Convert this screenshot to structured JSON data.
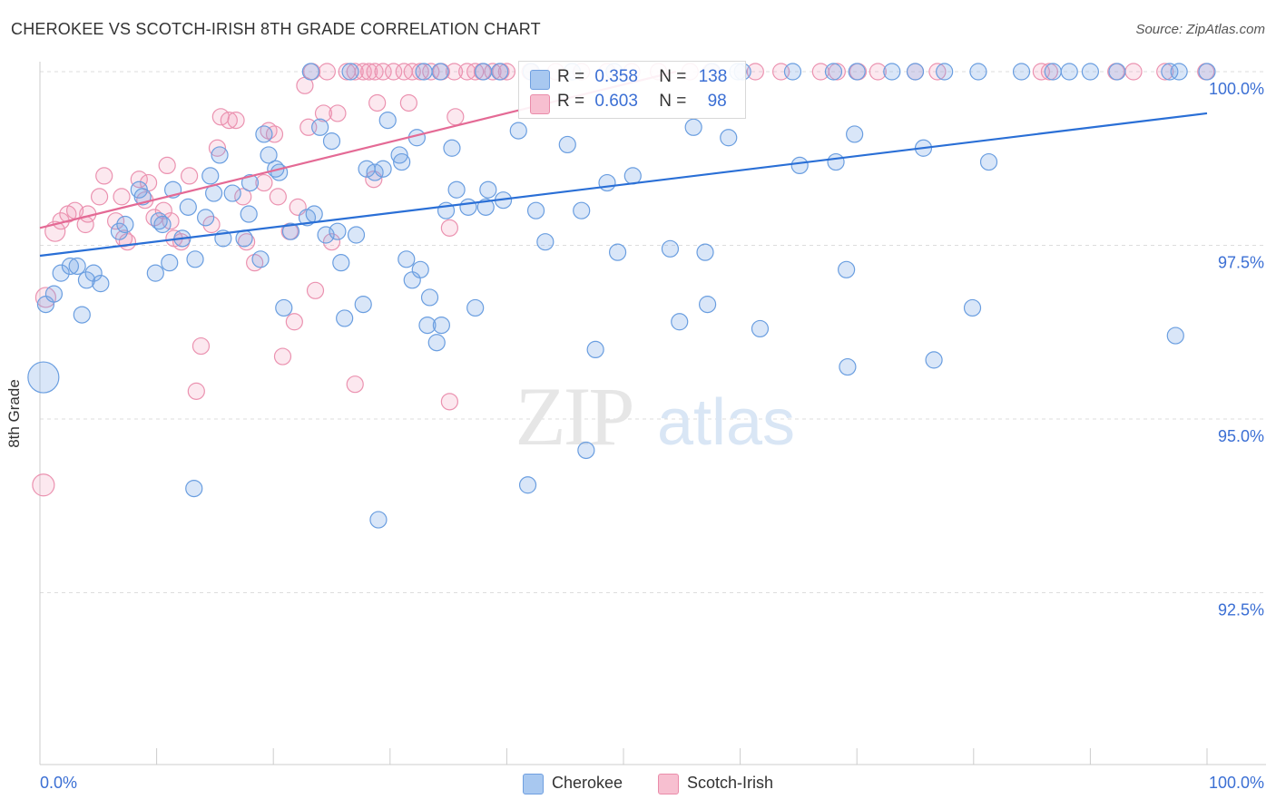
{
  "header": {
    "title": "CHEROKEE VS SCOTCH-IRISH 8TH GRADE CORRELATION CHART",
    "source": "Source: ZipAtlas.com"
  },
  "watermark": {
    "zip": "ZIP",
    "atlas": "atlas"
  },
  "stats": [
    {
      "r_label": "R =",
      "r_value": "0.358",
      "n_label": "N =",
      "n_value": "138",
      "color": "#a8c8f0",
      "border": "#6f9fe0"
    },
    {
      "r_label": "R =",
      "r_value": "0.603",
      "n_label": "N =",
      "n_value": "98",
      "color": "#f7bfd0",
      "border": "#ea8caa"
    }
  ],
  "legend": [
    {
      "label": "Cherokee",
      "color": "#a8c8f0",
      "border": "#6f9fe0"
    },
    {
      "label": "Scotch-Irish",
      "color": "#f7bfd0",
      "border": "#ea8caa"
    }
  ],
  "colors": {
    "blue_fill": "rgba(120,165,230,0.28)",
    "blue_stroke": "#6a9ee0",
    "blue_line": "#2a6fd6",
    "pink_fill": "rgba(240,150,180,0.22)",
    "pink_stroke": "#eb92b0",
    "pink_line": "#e46a95",
    "tick_label": "#3b6fd4",
    "grid": "#dddddd"
  },
  "chart_data": {
    "type": "scatter",
    "title": "CHEROKEE VS SCOTCH-IRISH 8TH GRADE CORRELATION CHART",
    "xlabel": "",
    "ylabel": "8th Grade",
    "xlim": [
      0,
      100
    ],
    "ylim": [
      90.3,
      100.45
    ],
    "x_tick_labels": [
      "0.0%",
      "100.0%"
    ],
    "y_ticks": [
      92.5,
      95.0,
      97.5,
      100.0
    ],
    "y_tick_labels": [
      "92.5%",
      "95.0%",
      "97.5%",
      "100.0%"
    ],
    "grid": "horizontal dashed",
    "legend_position": "bottom-center",
    "series": [
      {
        "name": "Cherokee",
        "r": 0.358,
        "n": 138,
        "trend": {
          "x": [
            0,
            100
          ],
          "y": [
            97.35,
            99.4
          ]
        },
        "points": [
          [
            0.5,
            96.65,
            9
          ],
          [
            1.2,
            96.8,
            9
          ],
          [
            1.8,
            97.1,
            9
          ],
          [
            2.6,
            97.2,
            9
          ],
          [
            3.6,
            96.5,
            9
          ],
          [
            3.2,
            97.2,
            9
          ],
          [
            4.0,
            97.0,
            9
          ],
          [
            4.6,
            97.1,
            9
          ],
          [
            5.2,
            96.95,
            9
          ],
          [
            6.8,
            97.7,
            9
          ],
          [
            7.3,
            97.8,
            9
          ],
          [
            8.5,
            98.3,
            9
          ],
          [
            8.8,
            98.2,
            9
          ],
          [
            9.9,
            97.1,
            9
          ],
          [
            10.2,
            97.85,
            9
          ],
          [
            10.5,
            97.8,
            9
          ],
          [
            11.1,
            97.25,
            9
          ],
          [
            11.4,
            98.3,
            9
          ],
          [
            12.2,
            97.6,
            9
          ],
          [
            12.7,
            98.05,
            9
          ],
          [
            13.2,
            94.0,
            9
          ],
          [
            13.3,
            97.3,
            9
          ],
          [
            14.2,
            97.9,
            9
          ],
          [
            14.6,
            98.5,
            9
          ],
          [
            14.9,
            98.25,
            9
          ],
          [
            15.4,
            98.8,
            9
          ],
          [
            15.7,
            97.6,
            9
          ],
          [
            16.5,
            98.25,
            9
          ],
          [
            17.5,
            97.6,
            9
          ],
          [
            17.9,
            97.95,
            9
          ],
          [
            18.0,
            98.4,
            9
          ],
          [
            18.9,
            97.3,
            9
          ],
          [
            19.2,
            99.1,
            9
          ],
          [
            19.6,
            98.8,
            9
          ],
          [
            20.2,
            98.6,
            9
          ],
          [
            20.5,
            98.55,
            9
          ],
          [
            20.9,
            96.6,
            9
          ],
          [
            21.5,
            97.7,
            9
          ],
          [
            22.9,
            97.9,
            9
          ],
          [
            23.5,
            97.95,
            9
          ],
          [
            24.0,
            99.2,
            9
          ],
          [
            24.5,
            97.65,
            9
          ],
          [
            25.0,
            99.0,
            9
          ],
          [
            25.5,
            97.7,
            9
          ],
          [
            25.8,
            97.25,
            9
          ],
          [
            26.1,
            96.45,
            9
          ],
          [
            27.1,
            97.65,
            9
          ],
          [
            27.7,
            96.65,
            9
          ],
          [
            28.0,
            98.6,
            9
          ],
          [
            28.7,
            98.55,
            9
          ],
          [
            29.0,
            93.55,
            9
          ],
          [
            29.4,
            98.6,
            9
          ],
          [
            29.8,
            99.3,
            9
          ],
          [
            30.8,
            98.8,
            9
          ],
          [
            31.0,
            98.7,
            9
          ],
          [
            31.4,
            97.3,
            9
          ],
          [
            31.9,
            97.0,
            9
          ],
          [
            32.3,
            99.05,
            9
          ],
          [
            32.6,
            97.15,
            9
          ],
          [
            33.2,
            96.35,
            9
          ],
          [
            33.4,
            96.75,
            9
          ],
          [
            34.0,
            96.1,
            9
          ],
          [
            34.4,
            96.35,
            9
          ],
          [
            34.8,
            98.0,
            9
          ],
          [
            35.3,
            98.9,
            9
          ],
          [
            35.7,
            98.3,
            9
          ],
          [
            36.7,
            98.05,
            9
          ],
          [
            37.3,
            96.6,
            9
          ],
          [
            38.2,
            98.05,
            9
          ],
          [
            38.4,
            98.3,
            9
          ],
          [
            39.7,
            98.15,
            9
          ],
          [
            41.0,
            99.15,
            9
          ],
          [
            41.8,
            94.05,
            9
          ],
          [
            42.5,
            98.0,
            9
          ],
          [
            43.3,
            97.55,
            9
          ],
          [
            45.2,
            98.95,
            9
          ],
          [
            46.4,
            98.0,
            9
          ],
          [
            46.8,
            94.55,
            9
          ],
          [
            47.6,
            96.0,
            9
          ],
          [
            48.6,
            98.4,
            9
          ],
          [
            49.5,
            97.4,
            9
          ],
          [
            50.8,
            98.5,
            9
          ],
          [
            54.0,
            97.45,
            9
          ],
          [
            54.8,
            96.4,
            9
          ],
          [
            56.0,
            99.2,
            9
          ],
          [
            57.0,
            97.4,
            9
          ],
          [
            57.2,
            96.65,
            9
          ],
          [
            59.0,
            99.05,
            9
          ],
          [
            61.7,
            96.3,
            9
          ],
          [
            65.1,
            98.65,
            9
          ],
          [
            68.2,
            98.7,
            9
          ],
          [
            69.1,
            97.15,
            9
          ],
          [
            69.2,
            95.75,
            9
          ],
          [
            69.8,
            99.1,
            9
          ],
          [
            75.7,
            98.9,
            9
          ],
          [
            76.6,
            95.85,
            9
          ],
          [
            79.9,
            96.6,
            9
          ],
          [
            81.3,
            98.7,
            9
          ],
          [
            97.3,
            96.2,
            9
          ],
          [
            92.3,
            100.0,
            9
          ],
          [
            96.8,
            100.0,
            9
          ],
          [
            86.8,
            100.0,
            9
          ],
          [
            88.2,
            100.0,
            9
          ],
          [
            77.5,
            100.0,
            9
          ],
          [
            75.0,
            100.0,
            9
          ],
          [
            73.0,
            100.0,
            9
          ],
          [
            68.0,
            100.0,
            9
          ],
          [
            64.5,
            100.0,
            9
          ],
          [
            60.2,
            100.0,
            9
          ],
          [
            59.8,
            100.0,
            9
          ],
          [
            57.6,
            100.0,
            9
          ],
          [
            49.2,
            100.0,
            9
          ],
          [
            45.6,
            100.0,
            9
          ],
          [
            42.1,
            100.0,
            9
          ],
          [
            39.4,
            100.0,
            9
          ],
          [
            38.0,
            100.0,
            9
          ],
          [
            34.3,
            100.0,
            9
          ],
          [
            32.9,
            100.0,
            9
          ],
          [
            26.6,
            100.0,
            9
          ],
          [
            23.2,
            100.0,
            9
          ],
          [
            100.0,
            100.0,
            9
          ],
          [
            97.6,
            100.0,
            9
          ],
          [
            90.0,
            100.0,
            9
          ],
          [
            84.1,
            100.0,
            9
          ],
          [
            80.4,
            100.0,
            9
          ],
          [
            70.0,
            100.0,
            9
          ],
          [
            0.3,
            95.6,
            17
          ]
        ]
      },
      {
        "name": "Scotch-Irish",
        "r": 0.603,
        "n": 98,
        "trend": {
          "x": [
            0,
            54.5
          ],
          "y": [
            97.75,
            100.0
          ]
        },
        "points": [
          [
            0.5,
            96.75,
            11
          ],
          [
            1.3,
            97.7,
            11
          ],
          [
            1.8,
            97.85,
            9
          ],
          [
            2.4,
            97.95,
            9
          ],
          [
            3.0,
            98.0,
            9
          ],
          [
            3.9,
            97.8,
            9
          ],
          [
            4.1,
            97.95,
            9
          ],
          [
            5.1,
            98.2,
            9
          ],
          [
            5.5,
            98.5,
            9
          ],
          [
            6.5,
            97.85,
            9
          ],
          [
            7.0,
            98.2,
            9
          ],
          [
            7.2,
            97.6,
            9
          ],
          [
            7.5,
            97.55,
            9
          ],
          [
            8.5,
            98.45,
            9
          ],
          [
            9.0,
            98.15,
            9
          ],
          [
            9.3,
            98.4,
            9
          ],
          [
            9.8,
            97.9,
            9
          ],
          [
            10.6,
            98.0,
            9
          ],
          [
            10.9,
            98.65,
            9
          ],
          [
            11.2,
            97.85,
            9
          ],
          [
            11.5,
            97.6,
            9
          ],
          [
            12.1,
            97.55,
            9
          ],
          [
            12.8,
            98.5,
            9
          ],
          [
            13.4,
            95.4,
            9
          ],
          [
            13.8,
            96.05,
            9
          ],
          [
            14.7,
            97.8,
            9
          ],
          [
            15.2,
            98.9,
            9
          ],
          [
            15.5,
            99.35,
            9
          ],
          [
            16.2,
            99.3,
            9
          ],
          [
            16.8,
            99.3,
            9
          ],
          [
            17.4,
            98.2,
            9
          ],
          [
            17.7,
            97.55,
            9
          ],
          [
            18.4,
            97.25,
            9
          ],
          [
            19.2,
            98.4,
            9
          ],
          [
            19.6,
            99.15,
            9
          ],
          [
            20.1,
            99.1,
            9
          ],
          [
            20.4,
            98.2,
            9
          ],
          [
            20.8,
            95.9,
            9
          ],
          [
            21.4,
            97.7,
            9
          ],
          [
            21.8,
            96.4,
            9
          ],
          [
            22.1,
            98.05,
            9
          ],
          [
            23.0,
            99.2,
            9
          ],
          [
            23.6,
            96.85,
            9
          ],
          [
            24.3,
            99.4,
            9
          ],
          [
            25.0,
            97.55,
            9
          ],
          [
            25.5,
            99.4,
            9
          ],
          [
            27.0,
            95.5,
            9
          ],
          [
            28.6,
            98.45,
            9
          ],
          [
            28.9,
            99.55,
            9
          ],
          [
            31.6,
            99.55,
            9
          ],
          [
            35.1,
            95.25,
            9
          ],
          [
            35.6,
            99.35,
            9
          ],
          [
            35.1,
            97.75,
            9
          ],
          [
            22.7,
            99.8,
            9
          ],
          [
            0.3,
            94.05,
            12
          ],
          [
            23.3,
            100.0,
            9
          ],
          [
            24.6,
            100.0,
            9
          ],
          [
            26.3,
            100.0,
            9
          ],
          [
            27.0,
            100.0,
            9
          ],
          [
            27.7,
            100.0,
            9
          ],
          [
            28.2,
            100.0,
            9
          ],
          [
            28.7,
            100.0,
            9
          ],
          [
            29.4,
            100.0,
            9
          ],
          [
            30.3,
            100.0,
            9
          ],
          [
            31.2,
            100.0,
            9
          ],
          [
            31.9,
            100.0,
            9
          ],
          [
            32.6,
            100.0,
            9
          ],
          [
            33.5,
            100.0,
            9
          ],
          [
            34.4,
            100.0,
            9
          ],
          [
            35.5,
            100.0,
            9
          ],
          [
            36.6,
            100.0,
            9
          ],
          [
            37.3,
            100.0,
            9
          ],
          [
            37.9,
            100.0,
            9
          ],
          [
            38.8,
            100.0,
            9
          ],
          [
            39.5,
            100.0,
            9
          ],
          [
            40.0,
            100.0,
            9
          ],
          [
            42.0,
            100.0,
            9
          ],
          [
            44.2,
            100.0,
            9
          ],
          [
            46.4,
            100.0,
            9
          ],
          [
            48.6,
            100.0,
            9
          ],
          [
            50.7,
            100.0,
            9
          ],
          [
            53.0,
            100.0,
            9
          ],
          [
            55.7,
            100.0,
            9
          ],
          [
            57.5,
            100.0,
            9
          ],
          [
            61.3,
            100.0,
            9
          ],
          [
            63.5,
            100.0,
            9
          ],
          [
            66.9,
            100.0,
            9
          ],
          [
            68.3,
            100.0,
            9
          ],
          [
            70.1,
            100.0,
            9
          ],
          [
            71.8,
            100.0,
            9
          ],
          [
            75.0,
            100.0,
            9
          ],
          [
            76.9,
            100.0,
            9
          ],
          [
            85.8,
            100.0,
            9
          ],
          [
            86.5,
            100.0,
            9
          ],
          [
            92.2,
            100.0,
            9
          ],
          [
            93.7,
            100.0,
            9
          ],
          [
            96.4,
            100.0,
            9
          ],
          [
            99.9,
            100.0,
            9
          ]
        ]
      }
    ]
  }
}
